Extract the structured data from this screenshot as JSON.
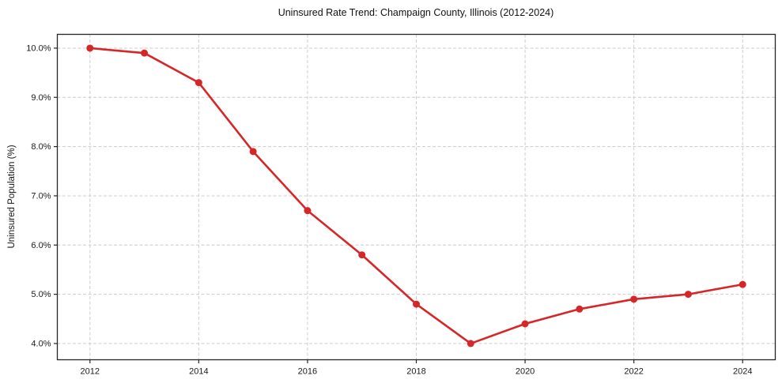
{
  "chart_data": {
    "type": "line",
    "title": "Uninsured Rate Trend: Champaign County, Illinois (2012-2024)",
    "xlabel": "",
    "ylabel": "Uninsured Population (%)",
    "x": [
      2012,
      2013,
      2014,
      2015,
      2016,
      2017,
      2018,
      2019,
      2020,
      2021,
      2022,
      2023,
      2024
    ],
    "values": [
      10.0,
      9.9,
      9.3,
      7.9,
      6.7,
      5.8,
      4.8,
      4.0,
      4.4,
      4.7,
      4.9,
      5.0,
      5.2
    ],
    "xlim": [
      2011.4,
      2024.6
    ],
    "ylim": [
      3.67,
      10.28
    ],
    "xticks": [
      {
        "value": 2012,
        "label": "2012"
      },
      {
        "value": 2014,
        "label": "2014"
      },
      {
        "value": 2016,
        "label": "2016"
      },
      {
        "value": 2018,
        "label": "2018"
      },
      {
        "value": 2020,
        "label": "2020"
      },
      {
        "value": 2022,
        "label": "2022"
      },
      {
        "value": 2024,
        "label": "2024"
      }
    ],
    "yticks": [
      {
        "value": 4.0,
        "label": "4.0%"
      },
      {
        "value": 5.0,
        "label": "5.0%"
      },
      {
        "value": 6.0,
        "label": "6.0%"
      },
      {
        "value": 7.0,
        "label": "7.0%"
      },
      {
        "value": 8.0,
        "label": "8.0%"
      },
      {
        "value": 9.0,
        "label": "9.0%"
      },
      {
        "value": 10.0,
        "label": "10.0%"
      }
    ],
    "line_color": "#d62728",
    "marker": "circle",
    "grid": true,
    "grid_style": "dashed",
    "grid_color": "#cccccc",
    "spine_color": "#262626",
    "background_color": "#ffffff",
    "legend": "none"
  }
}
